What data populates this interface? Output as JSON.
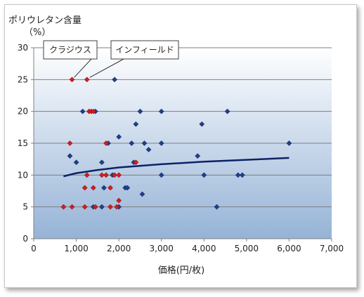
{
  "chart_data": {
    "type": "scatter",
    "ylabel_line1": "ポリウレタン含量",
    "ylabel_line2": "（%）",
    "xlabel": "価格(円/枚)",
    "xlim": [
      0,
      7000
    ],
    "ylim": [
      0,
      30
    ],
    "x_ticks": [
      0,
      1000,
      2000,
      3000,
      4000,
      5000,
      6000,
      7000
    ],
    "x_tick_labels": [
      "0",
      "1,000",
      "2,000",
      "3,000",
      "4,000",
      "5,000",
      "6,000",
      "7,000"
    ],
    "y_ticks": [
      0,
      5,
      10,
      15,
      20,
      25,
      30
    ],
    "y_tick_labels": [
      "0",
      "5",
      "10",
      "15",
      "20",
      "25",
      "30"
    ],
    "grid": true,
    "background_gradient": [
      "#ffffff",
      "#95b3d7"
    ],
    "series": [
      {
        "color": "#1f3f8c",
        "marker": "diamond",
        "points": [
          [
            850,
            13
          ],
          [
            1000,
            12
          ],
          [
            1150,
            20
          ],
          [
            1450,
            20
          ],
          [
            1600,
            12
          ],
          [
            1650,
            8
          ],
          [
            1750,
            15
          ],
          [
            1900,
            25
          ],
          [
            2000,
            16
          ],
          [
            2150,
            8
          ],
          [
            2200,
            8
          ],
          [
            2300,
            15
          ],
          [
            2400,
            18
          ],
          [
            2500,
            20
          ],
          [
            2600,
            15
          ],
          [
            2700,
            14
          ],
          [
            2550,
            7
          ],
          [
            3000,
            20
          ],
          [
            3000,
            15
          ],
          [
            3000,
            10
          ],
          [
            3850,
            13
          ],
          [
            3950,
            18
          ],
          [
            4000,
            10
          ],
          [
            4300,
            5
          ],
          [
            4550,
            20
          ],
          [
            4800,
            10
          ],
          [
            4900,
            10
          ],
          [
            6000,
            15
          ],
          [
            1600,
            5
          ],
          [
            1850,
            10
          ],
          [
            2000,
            5
          ],
          [
            2350,
            12
          ],
          [
            1400,
            5
          ]
        ]
      },
      {
        "color": "#cc1f1f",
        "marker": "diamond",
        "points": [
          [
            900,
            25
          ],
          [
            1250,
            25
          ],
          [
            1300,
            20
          ],
          [
            1350,
            20
          ],
          [
            1400,
            20
          ],
          [
            850,
            15
          ],
          [
            1700,
            15
          ],
          [
            1250,
            10
          ],
          [
            1600,
            10
          ],
          [
            1700,
            10
          ],
          [
            1900,
            10
          ],
          [
            2000,
            10
          ],
          [
            1200,
            8
          ],
          [
            1400,
            8
          ],
          [
            1800,
            8
          ],
          [
            2400,
            12
          ],
          [
            2000,
            6
          ],
          [
            700,
            5
          ],
          [
            900,
            5
          ],
          [
            1200,
            5
          ],
          [
            1450,
            5
          ],
          [
            1800,
            5
          ],
          [
            1950,
            5
          ]
        ]
      }
    ],
    "trendline": {
      "type": "log",
      "color": "#0d2266",
      "x_range": [
        700,
        6000
      ],
      "points": [
        [
          700,
          9.8
        ],
        [
          1000,
          10.3
        ],
        [
          1500,
          10.8
        ],
        [
          2000,
          11.2
        ],
        [
          3000,
          11.7
        ],
        [
          4000,
          12.1
        ],
        [
          5000,
          12.4
        ],
        [
          6000,
          12.7
        ]
      ]
    },
    "callouts": [
      {
        "text": "クラジウス",
        "target": [
          900,
          25
        ]
      },
      {
        "text": "インフィールド",
        "target": [
          1250,
          25
        ]
      }
    ]
  }
}
